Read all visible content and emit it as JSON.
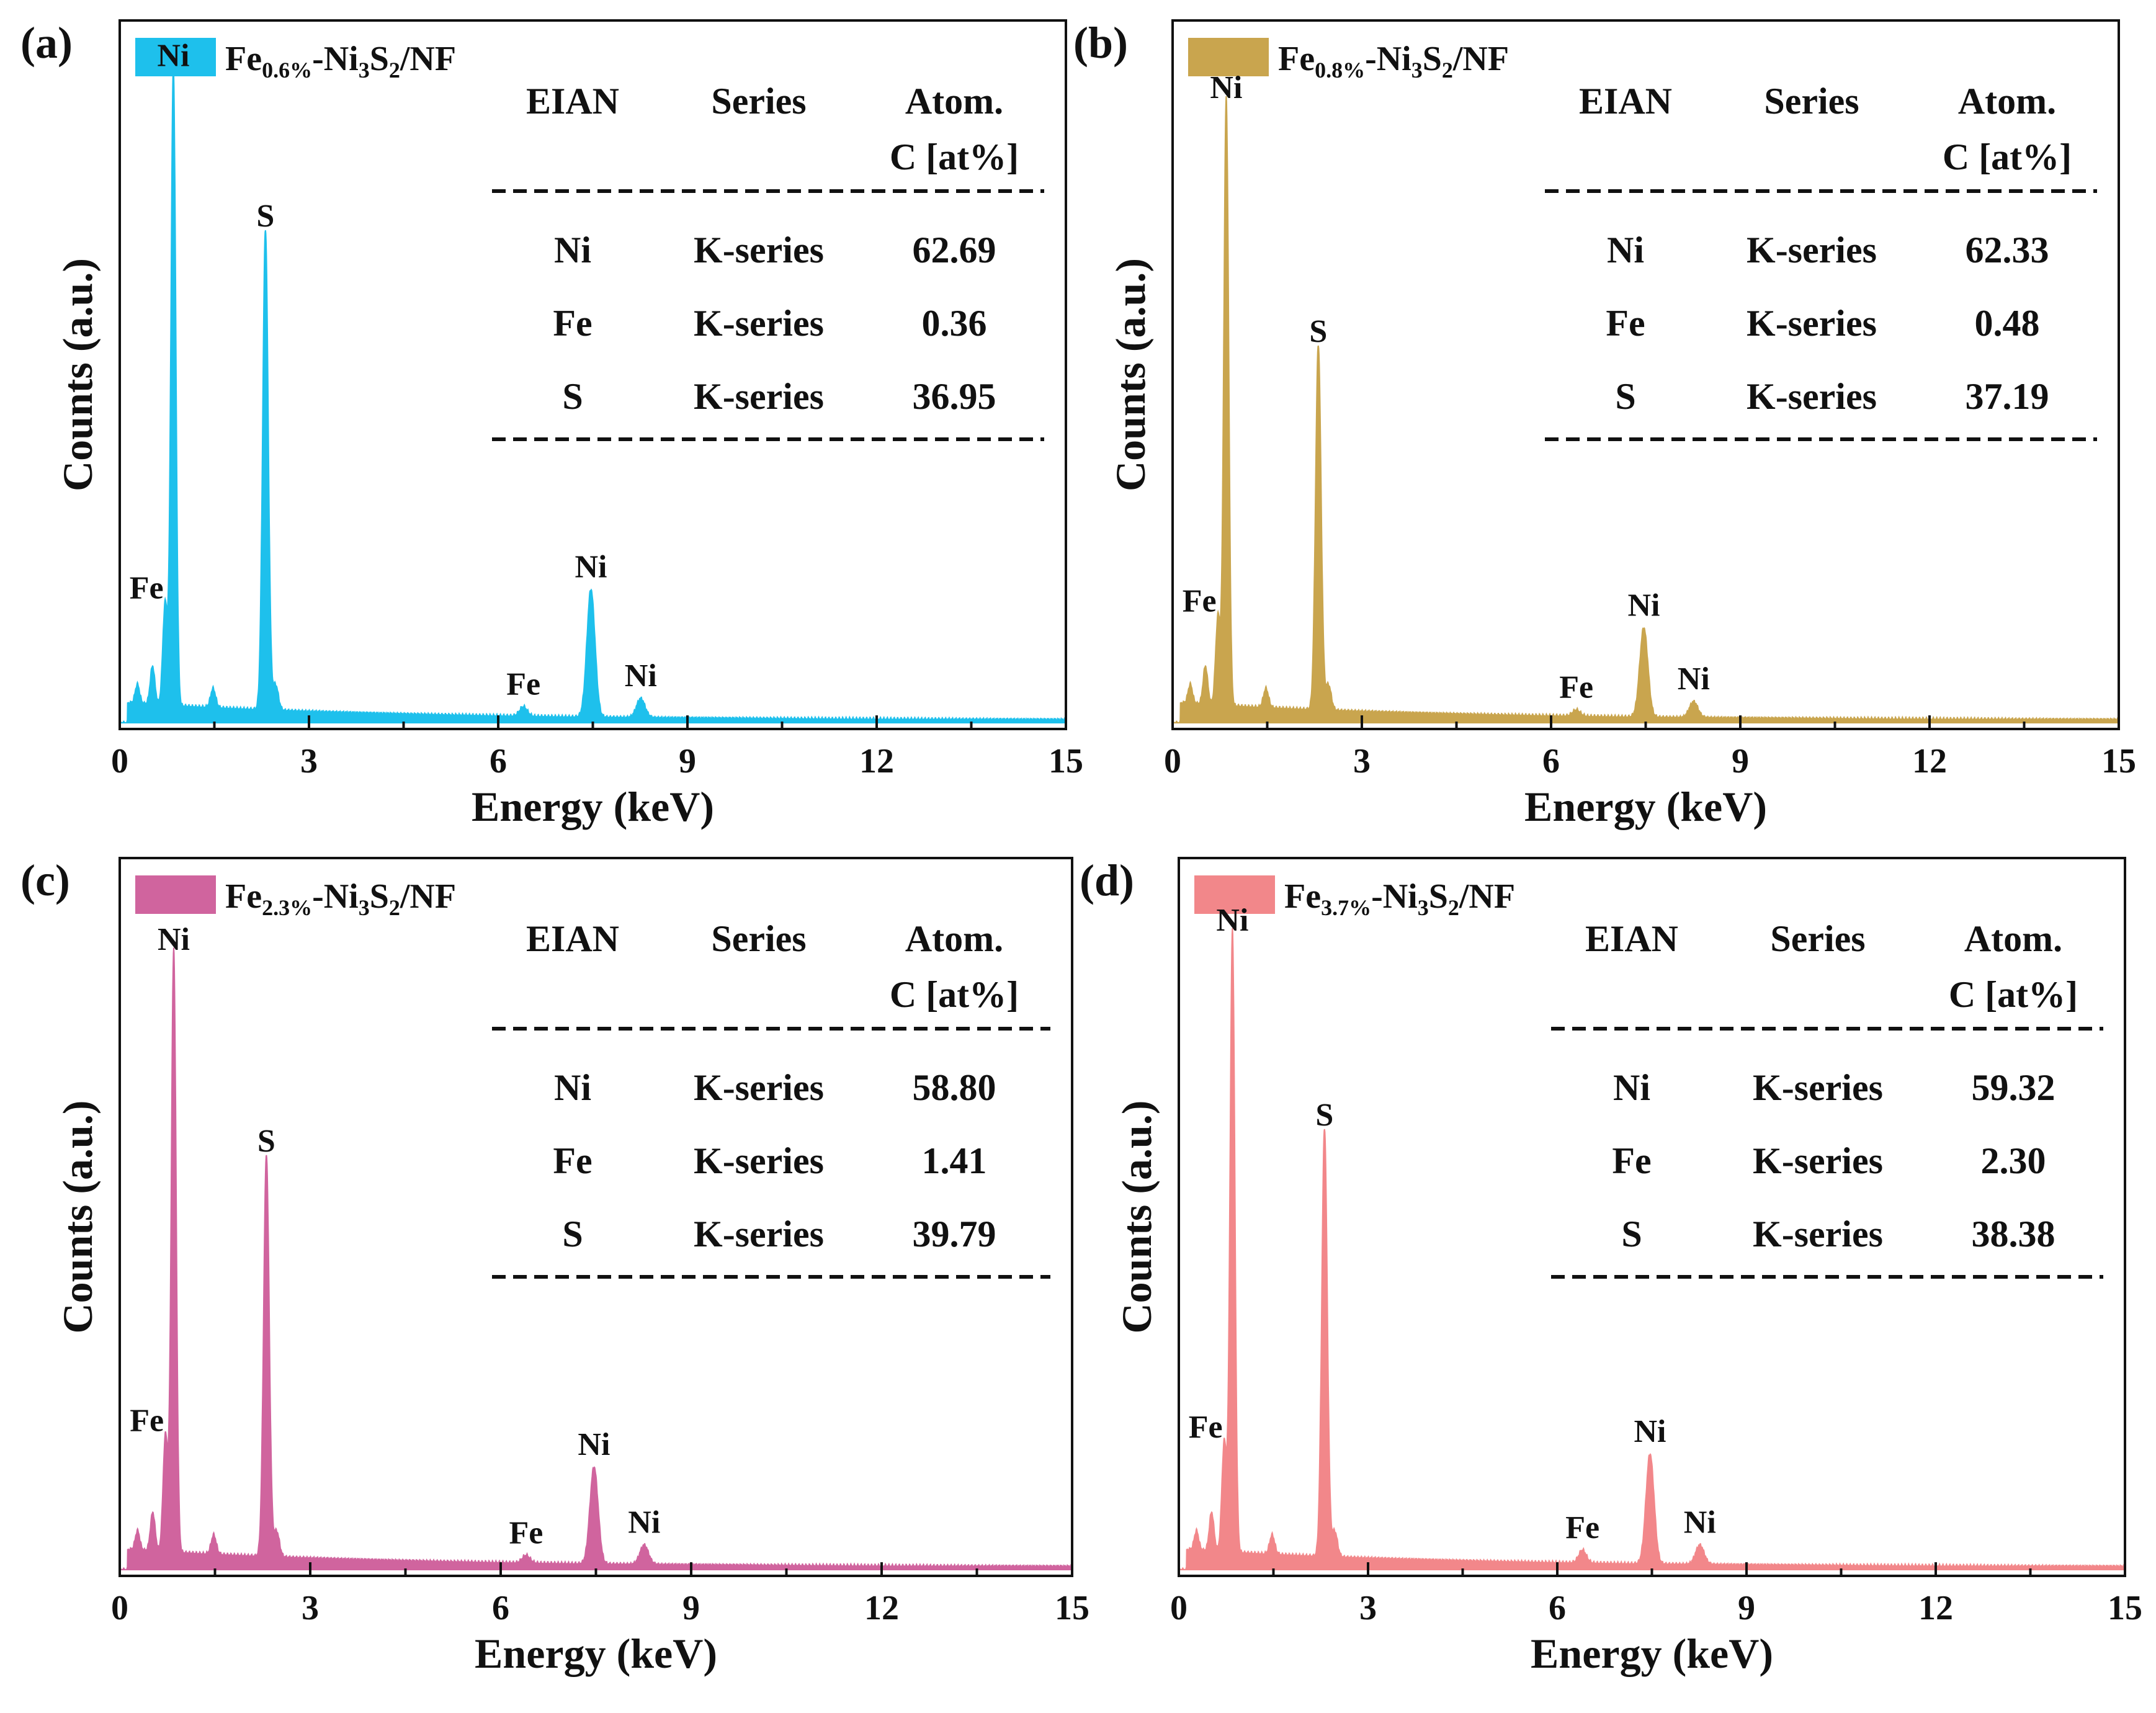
{
  "figure": {
    "axis_label_x": "Energy (keV)",
    "axis_label_y": "Counts (a.u.)",
    "x_ticks": [
      "0",
      "3",
      "6",
      "9",
      "12",
      "15"
    ],
    "table_headers": {
      "col1": "EIAN",
      "col2": "Series",
      "col3_line1": "Atom.",
      "col3_line2": "C [at%]"
    }
  },
  "chart_data": [
    {
      "type": "line",
      "panel_label": "(a)",
      "legend": {
        "prefix": "Fe",
        "subscript": "0.6%",
        "suffix_main": "-Ni",
        "sub1": "3",
        "mid": "S",
        "sub2": "2",
        "tail": "/NF"
      },
      "color": "#1ec0ec",
      "xlabel": "Energy (keV)",
      "ylabel": "Counts (a.u.)",
      "xlim": [
        0,
        15
      ],
      "peaks": [
        {
          "label": "Fe",
          "x": 0.72,
          "y": 0.16
        },
        {
          "label": "Ni",
          "x": 0.85,
          "y": 1.0
        },
        {
          "label": "S",
          "x": 2.31,
          "y": 0.75
        },
        {
          "label": "Fe",
          "x": 6.4,
          "y": 0.015
        },
        {
          "label": "Ni",
          "x": 7.47,
          "y": 0.2
        },
        {
          "label": "Ni",
          "x": 8.26,
          "y": 0.03
        }
      ],
      "table": [
        {
          "element": "Ni",
          "series": "K-series",
          "atom": "62.69"
        },
        {
          "element": "Fe",
          "series": "K-series",
          "atom": "0.36"
        },
        {
          "element": "S",
          "series": "K-series",
          "atom": "36.95"
        }
      ]
    },
    {
      "type": "line",
      "panel_label": "(b)",
      "legend": {
        "prefix": "Fe",
        "subscript": "0.8%",
        "suffix_main": "-Ni",
        "sub1": "3",
        "mid": "S",
        "sub2": "2",
        "tail": "/NF"
      },
      "color": "#c9a54e",
      "xlabel": "Energy (keV)",
      "ylabel": "Counts (a.u.)",
      "xlim": [
        0,
        15
      ],
      "peaks": [
        {
          "label": "Fe",
          "x": 0.72,
          "y": 0.14
        },
        {
          "label": "Ni",
          "x": 0.85,
          "y": 0.95
        },
        {
          "label": "S",
          "x": 2.31,
          "y": 0.57
        },
        {
          "label": "Fe",
          "x": 6.4,
          "y": 0.01
        },
        {
          "label": "Ni",
          "x": 7.47,
          "y": 0.14
        },
        {
          "label": "Ni",
          "x": 8.26,
          "y": 0.025
        }
      ],
      "table": [
        {
          "element": "Ni",
          "series": "K-series",
          "atom": "62.33"
        },
        {
          "element": "Fe",
          "series": "K-series",
          "atom": "0.48"
        },
        {
          "element": "S",
          "series": "K-series",
          "atom": "37.19"
        }
      ]
    },
    {
      "type": "line",
      "panel_label": "(c)",
      "legend": {
        "prefix": "Fe",
        "subscript": "2.3%",
        "suffix_main": "-Ni",
        "sub1": "3",
        "mid": "S",
        "sub2": "2",
        "tail": "/NF"
      },
      "color": "#d0649e",
      "xlabel": "Energy (keV)",
      "ylabel": "Counts (a.u.)",
      "xlim": [
        0,
        15
      ],
      "peaks": [
        {
          "label": "Fe",
          "x": 0.72,
          "y": 0.18
        },
        {
          "label": "Ni",
          "x": 0.85,
          "y": 0.93
        },
        {
          "label": "S",
          "x": 2.31,
          "y": 0.62
        },
        {
          "label": "Fe",
          "x": 6.4,
          "y": 0.012
        },
        {
          "label": "Ni",
          "x": 7.47,
          "y": 0.15
        },
        {
          "label": "Ni",
          "x": 8.26,
          "y": 0.03
        }
      ],
      "table": [
        {
          "element": "Ni",
          "series": "K-series",
          "atom": "58.80"
        },
        {
          "element": "Fe",
          "series": "K-series",
          "atom": "1.41"
        },
        {
          "element": "S",
          "series": "K-series",
          "atom": "39.79"
        }
      ]
    },
    {
      "type": "line",
      "panel_label": "(d)",
      "legend": {
        "prefix": "Fe",
        "subscript": "3.7%",
        "suffix_main": "-Ni",
        "sub1": "3",
        "mid": "S",
        "sub2": "2",
        "tail": "/NF"
      },
      "color": "#f2878a",
      "xlabel": "Energy (keV)",
      "ylabel": "Counts (a.u.)",
      "xlim": [
        0,
        15
      ],
      "peaks": [
        {
          "label": "Fe",
          "x": 0.72,
          "y": 0.17
        },
        {
          "label": "Ni",
          "x": 0.85,
          "y": 0.96
        },
        {
          "label": "S",
          "x": 2.31,
          "y": 0.66
        },
        {
          "label": "Fe",
          "x": 6.4,
          "y": 0.02
        },
        {
          "label": "Ni",
          "x": 7.47,
          "y": 0.17
        },
        {
          "label": "Ni",
          "x": 8.26,
          "y": 0.03
        }
      ],
      "table": [
        {
          "element": "Ni",
          "series": "K-series",
          "atom": "59.32"
        },
        {
          "element": "Fe",
          "series": "K-series",
          "atom": "2.30"
        },
        {
          "element": "S",
          "series": "K-series",
          "atom": "38.38"
        }
      ]
    }
  ]
}
